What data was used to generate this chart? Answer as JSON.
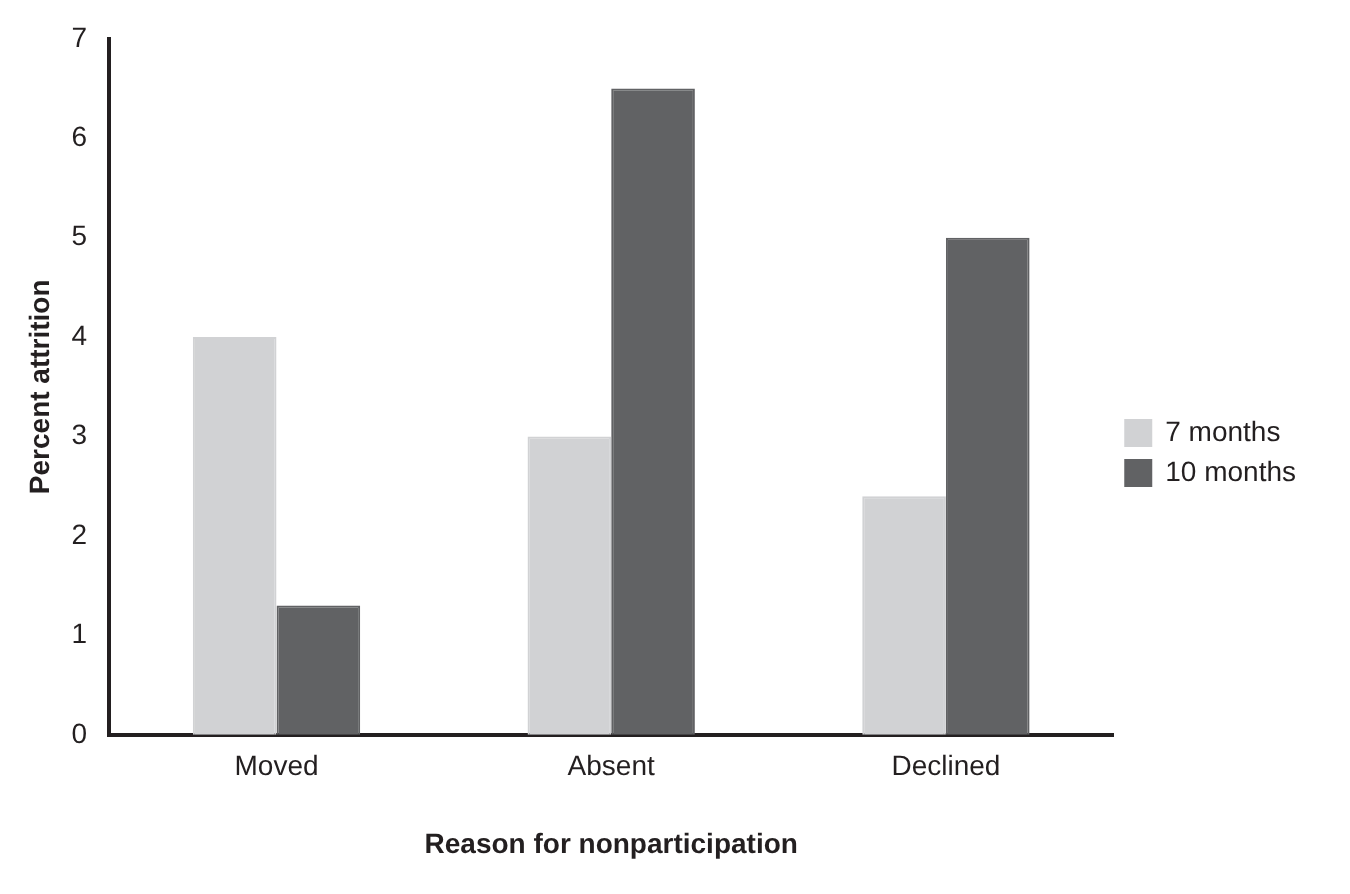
{
  "chart_data": {
    "type": "bar",
    "xlabel": "Reason for nonparticipation",
    "ylabel": "Percent attrition",
    "categories": [
      "Moved",
      "Absent",
      "Declined"
    ],
    "series": [
      {
        "name": "7 months",
        "color": "#d1d2d4",
        "values": [
          4.0,
          3.0,
          2.4
        ]
      },
      {
        "name": "10 months",
        "color": "#616264",
        "values": [
          1.3,
          6.5,
          5.0
        ]
      }
    ],
    "ylim": [
      0,
      7
    ],
    "yticks": [
      0,
      1,
      2,
      3,
      4,
      5,
      6,
      7
    ],
    "grid": false,
    "legend": "right"
  }
}
